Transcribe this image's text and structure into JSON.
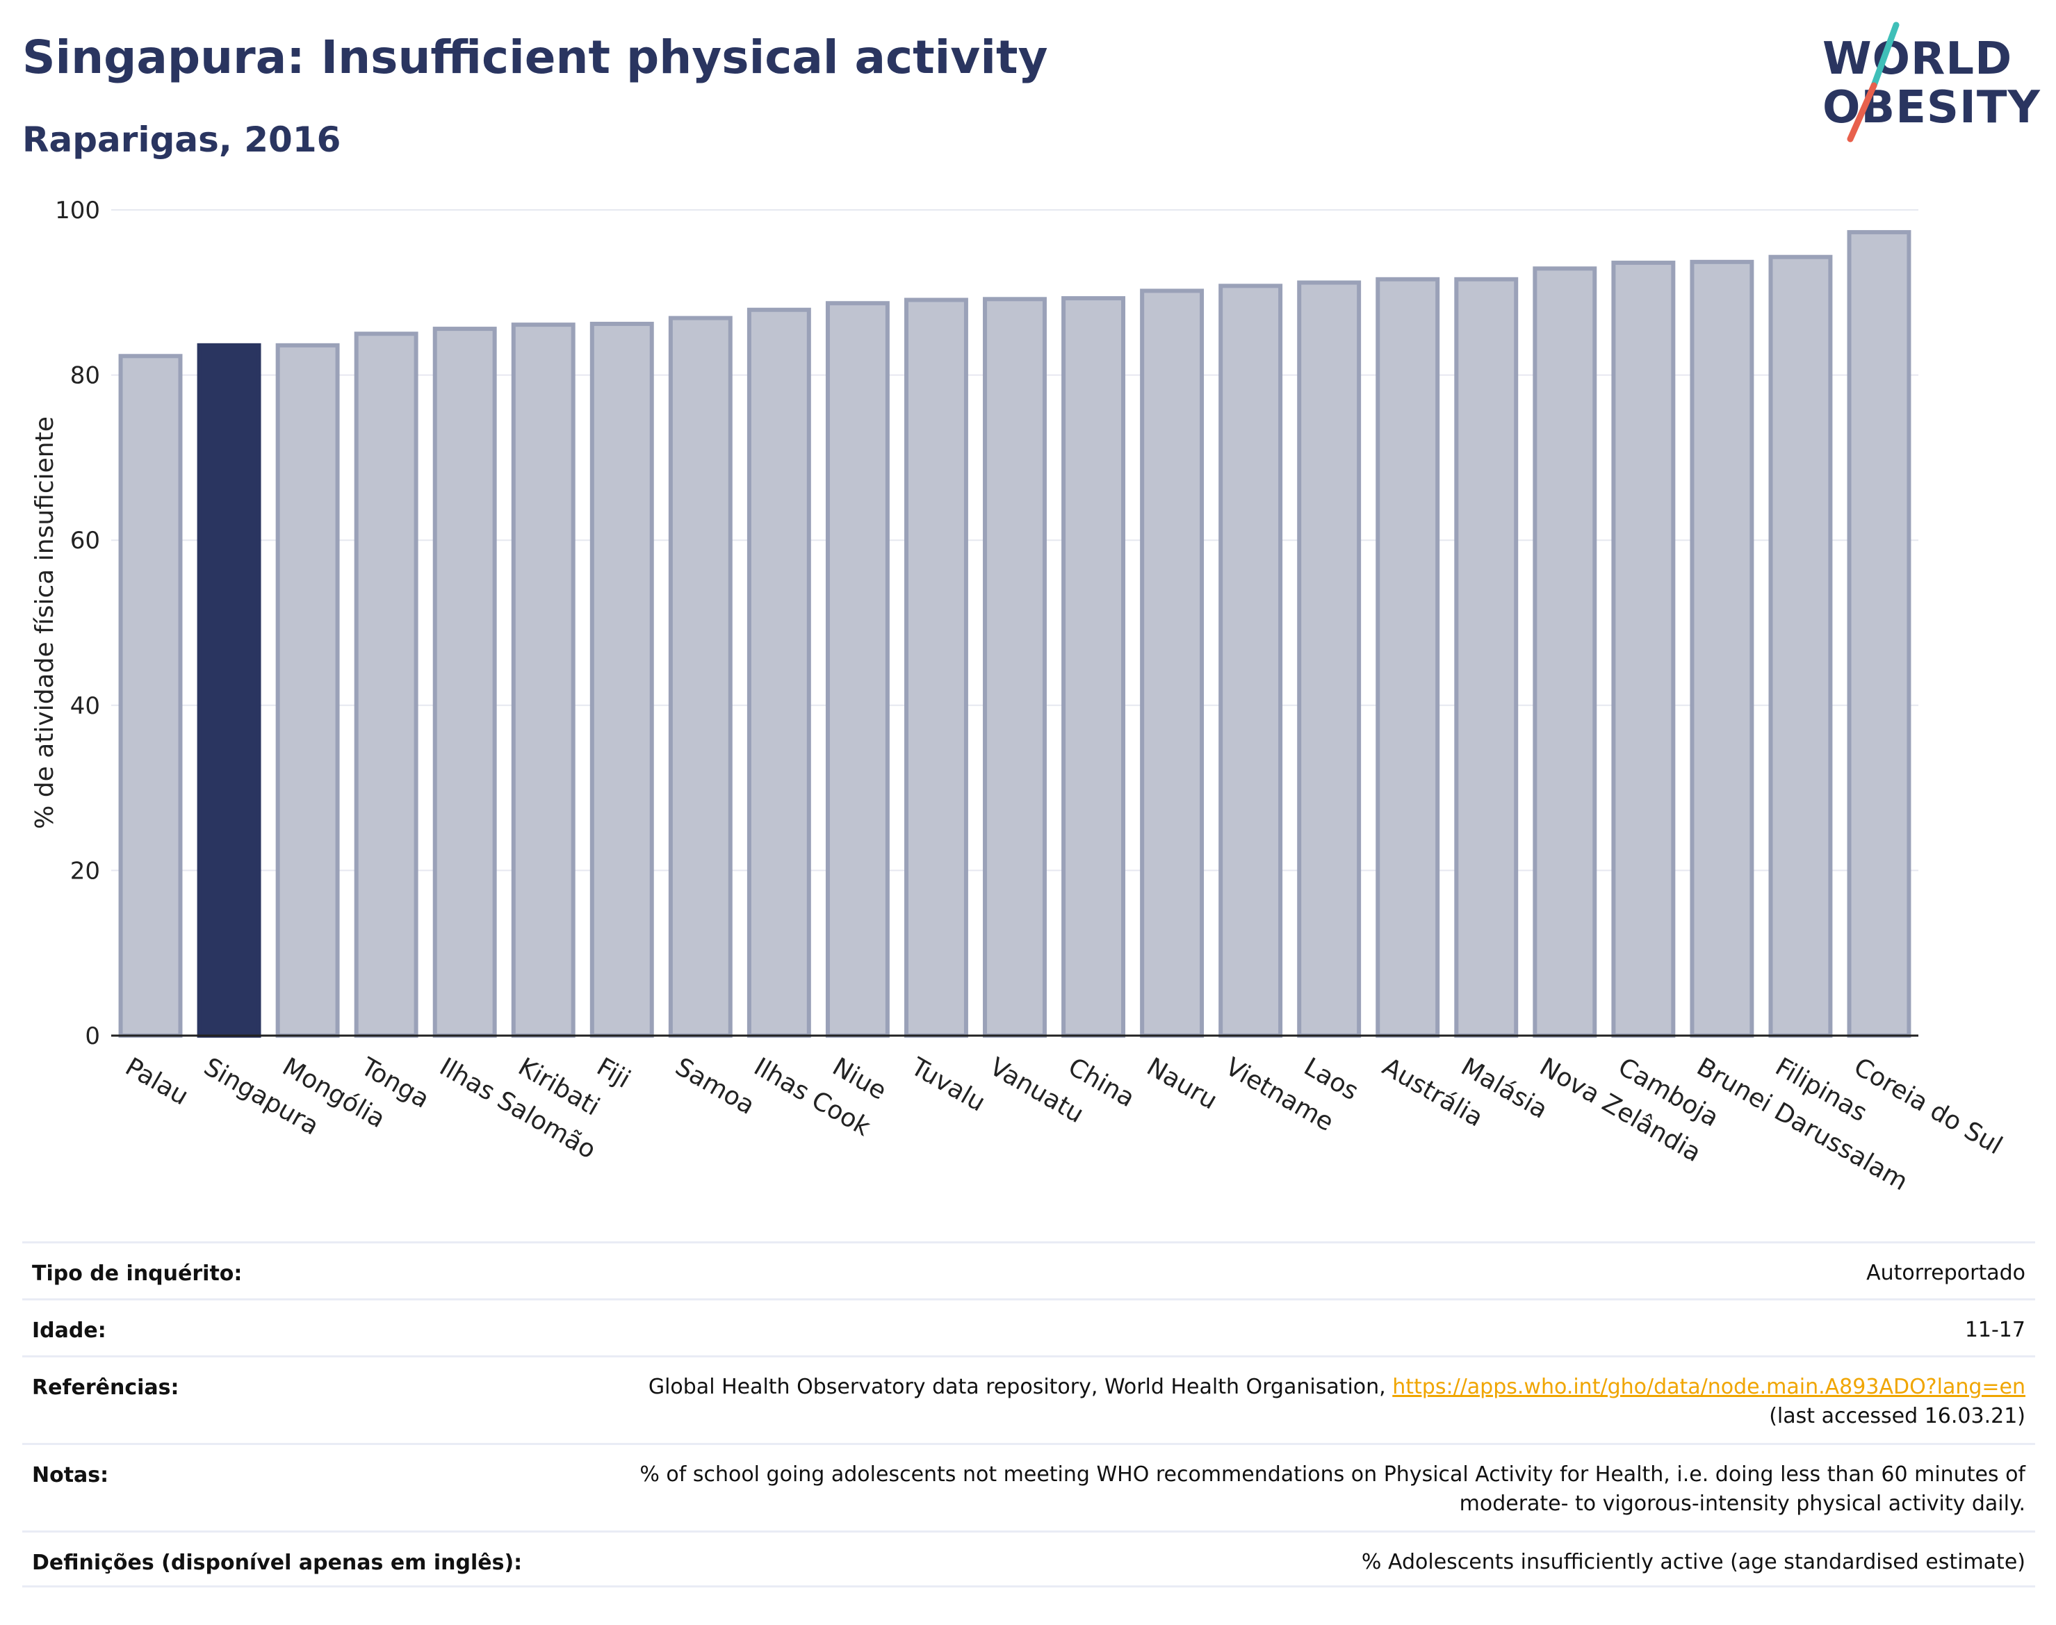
{
  "header": {
    "title": "Singapura: Insufficient physical activity",
    "subtitle": "Raparigas, 2016"
  },
  "logo": {
    "line1": "WORLD",
    "line2": "OBESITY"
  },
  "colors": {
    "highlight": "#2a3560",
    "bar_fill": "#bfc3d0",
    "bar_stroke": "#9aa1b8",
    "accent_teal": "#3fbfb8",
    "accent_red": "#e8604c",
    "link": "#f0a500"
  },
  "chart_data": {
    "type": "bar",
    "ylabel": "% de atividade física insuficiente",
    "xlabel": "",
    "ylim": [
      0,
      100
    ],
    "yticks": [
      0,
      20,
      40,
      60,
      80,
      100
    ],
    "grid": true,
    "highlight": "Singapura",
    "categories": [
      "Palau",
      "Singapura",
      "Mongólia",
      "Tonga",
      "Ilhas Salomão",
      "Kiribati",
      "Fiji",
      "Samoa",
      "Ilhas Cook",
      "Niue",
      "Tuvalu",
      "Vanuatu",
      "China",
      "Nauru",
      "Vietname",
      "Laos",
      "Austrália",
      "Malásia",
      "Nova Zelândia",
      "Camboja",
      "Brunei Darussalam",
      "Filipinas",
      "Coreia do Sul"
    ],
    "values": [
      82.3,
      83.6,
      83.6,
      85.0,
      85.6,
      86.1,
      86.2,
      86.9,
      87.9,
      88.7,
      89.1,
      89.2,
      89.3,
      90.2,
      90.8,
      91.2,
      91.6,
      91.6,
      92.9,
      93.6,
      93.7,
      94.3,
      97.3
    ]
  },
  "info": [
    {
      "label": "Tipo de inquérito:",
      "value": "Autorreportado"
    },
    {
      "label": "Idade:",
      "value": "11-17"
    },
    {
      "label": "Referências:",
      "value_prefix": "Global Health Observatory data repository, World Health Organisation,",
      "link": "https://apps.who.int/gho/data/node.main.A893ADO?lang=en",
      "value_suffix": "(last accessed 16.03.21)"
    },
    {
      "label": "Notas:",
      "value_line1": "% of school going adolescents not meeting WHO recommendations on Physical Activity for Health, i.e. doing less than 60 minutes of",
      "value_line2": "moderate- to vigorous-intensity physical activity daily."
    },
    {
      "label": "Definições (disponível apenas em inglês):",
      "value": "% Adolescents insufficiently active (age standardised estimate)"
    }
  ]
}
